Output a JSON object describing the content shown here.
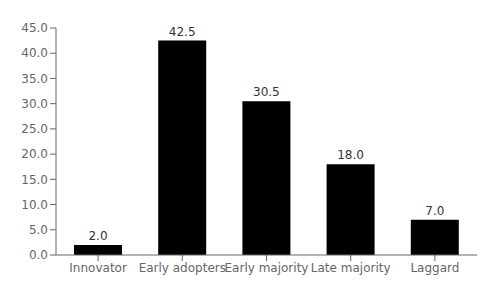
{
  "chart_data": {
    "type": "bar",
    "categories": [
      "Innovator",
      "Early adopters",
      "Early majority",
      "Late majority",
      "Laggard"
    ],
    "values": [
      2.0,
      42.5,
      30.5,
      18.0,
      7.0
    ],
    "value_labels": [
      "2.0",
      "42.5",
      "30.5",
      "18.0",
      "7.0"
    ],
    "data_labels": true,
    "ylim": [
      0,
      45
    ],
    "yticks": [
      {
        "value": 0,
        "label": "0.0"
      },
      {
        "value": 5,
        "label": "5.0"
      },
      {
        "value": 10,
        "label": "10.0"
      },
      {
        "value": 15,
        "label": "15.0"
      },
      {
        "value": 20,
        "label": "20.0"
      },
      {
        "value": 25,
        "label": "25.0"
      },
      {
        "value": 30,
        "label": "30.0"
      },
      {
        "value": 35,
        "label": "35.0"
      },
      {
        "value": 40,
        "label": "40.0"
      },
      {
        "value": 45,
        "label": "45.0"
      }
    ]
  }
}
